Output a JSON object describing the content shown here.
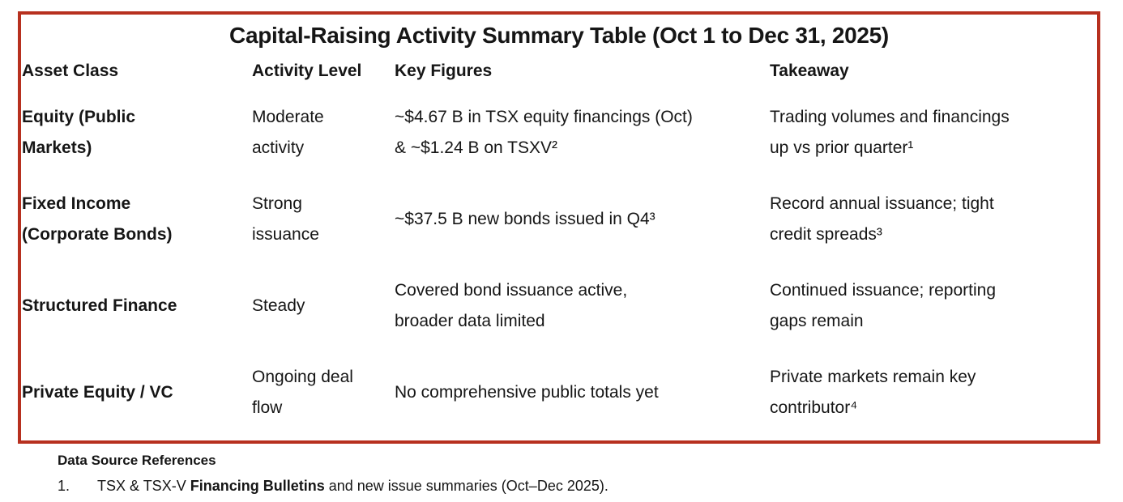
{
  "title": "Capital-Raising Activity Summary Table (Oct 1 to Dec 31, 2025)",
  "table": {
    "headers": [
      "Asset Class",
      "Activity Level",
      "Key Figures",
      "Takeaway"
    ],
    "rows": [
      {
        "asset_class": "Equity (Public\nMarkets)",
        "activity_level": "Moderate\nactivity",
        "key_figures": "~$4.67 B in TSX equity financings (Oct)\n& ~$1.24 B on TSXV²",
        "takeaway": "Trading volumes and financings\nup vs prior quarter¹"
      },
      {
        "asset_class": "Fixed Income\n(Corporate Bonds)",
        "activity_level": "Strong\nissuance",
        "key_figures": "~$37.5 B new bonds issued in Q4³",
        "takeaway": "Record annual issuance; tight\ncredit spreads³"
      },
      {
        "asset_class": "Structured Finance",
        "activity_level": "Steady",
        "key_figures": "Covered bond issuance active,\nbroader data limited",
        "takeaway": "Continued issuance; reporting\ngaps remain"
      },
      {
        "asset_class": "Private Equity / VC",
        "activity_level": "Ongoing deal\nflow",
        "key_figures": "No comprehensive public totals yet",
        "takeaway": "Private markets remain key\ncontributor⁴"
      }
    ]
  },
  "references": {
    "heading": "Data Source References",
    "items": [
      {
        "number": "1.",
        "prefix": "TSX & TSX-V ",
        "bold": "Financing Bulletins",
        "suffix": " and new issue summaries (Oct–Dec 2025)."
      }
    ]
  },
  "colors": {
    "border_red": "#B7301F",
    "text": "#161616",
    "background": "#FFFFFF"
  }
}
